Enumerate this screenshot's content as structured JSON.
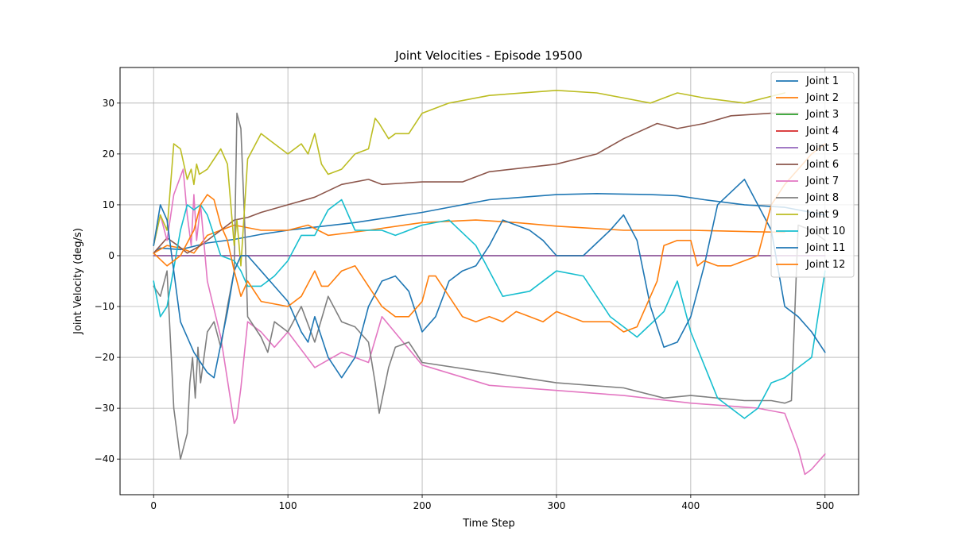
{
  "chart_data": {
    "type": "line",
    "title": "Joint Velocities - Episode 19500",
    "xlabel": "Time Step",
    "ylabel": "Joint Velocity (deg/s)",
    "xlim": [
      -25,
      525
    ],
    "ylim": [
      -47,
      37
    ],
    "xticks": [
      0,
      100,
      200,
      300,
      400,
      500
    ],
    "yticks": [
      -40,
      -30,
      -20,
      -10,
      0,
      10,
      20,
      30
    ],
    "xtick_labels": [
      "0",
      "100",
      "200",
      "300",
      "400",
      "500"
    ],
    "ytick_labels": [
      "−40",
      "−30",
      "−20",
      "−10",
      "0",
      "10",
      "20",
      "30"
    ],
    "grid": true,
    "legend_position": "top-right",
    "series": [
      {
        "name": "Joint 1",
        "color": "#1f77b4",
        "x": [
          0,
          5,
          20,
          40,
          60,
          80,
          100,
          150,
          200,
          250,
          300,
          330,
          370,
          390,
          410,
          440,
          470,
          490,
          500
        ],
        "y": [
          0.5,
          1.5,
          1.2,
          2.5,
          3.2,
          4.2,
          5,
          6.5,
          8.5,
          11,
          12,
          12.2,
          12,
          11.8,
          11,
          10,
          9.5,
          8.5,
          8
        ]
      },
      {
        "name": "Joint 2",
        "color": "#ff7f0e",
        "x": [
          0,
          10,
          20,
          30,
          40,
          60,
          80,
          100,
          115,
          130,
          160,
          200,
          240,
          270,
          300,
          350,
          400,
          450,
          470
        ],
        "y": [
          0.5,
          2,
          1.5,
          0.5,
          4,
          6,
          5,
          5,
          6,
          4,
          5,
          6.5,
          7,
          6.5,
          5.8,
          5,
          5,
          4.7,
          4.6
        ]
      },
      {
        "name": "Joint 3",
        "color": "#2ca02c",
        "x": [
          0,
          500
        ],
        "y": [
          0,
          0
        ]
      },
      {
        "name": "Joint 4",
        "color": "#d62728",
        "x": [
          0,
          500
        ],
        "y": [
          0,
          0
        ]
      },
      {
        "name": "Joint 5",
        "color": "#9467bd",
        "x": [
          0,
          500
        ],
        "y": [
          0,
          0
        ]
      },
      {
        "name": "Joint 6",
        "color": "#8c564b",
        "x": [
          0,
          10,
          18,
          25,
          35,
          50,
          60,
          70,
          80,
          100,
          120,
          140,
          160,
          170,
          200,
          230,
          250,
          300,
          330,
          350,
          375,
          390,
          410,
          430,
          460,
          480
        ],
        "y": [
          0.5,
          3.5,
          2,
          0.5,
          2,
          5,
          7,
          7.5,
          8.5,
          10,
          11.5,
          14,
          15,
          14,
          14.5,
          14.5,
          16.5,
          18,
          20,
          23,
          26,
          25,
          26,
          27.5,
          28,
          28
        ]
      },
      {
        "name": "Joint 7",
        "color": "#e377c2",
        "x": [
          0,
          5,
          10,
          15,
          22,
          25,
          28,
          30,
          32,
          35,
          40,
          50,
          60,
          62,
          65,
          70,
          80,
          90,
          100,
          120,
          140,
          160,
          170,
          200,
          250,
          300,
          350,
          400,
          450,
          470,
          480,
          485,
          490,
          500
        ],
        "y": [
          2,
          8,
          3,
          12,
          17,
          8,
          2,
          12,
          3,
          10,
          -5,
          -16,
          -33,
          -32,
          -26,
          -13,
          -15,
          -18,
          -15,
          -22,
          -19,
          -21,
          -12,
          -21.5,
          -25.5,
          -26.5,
          -27.5,
          -29,
          -30,
          -31,
          -38,
          -43,
          -42,
          -39
        ]
      },
      {
        "name": "Joint 8",
        "color": "#7f7f7f",
        "x": [
          0,
          5,
          10,
          15,
          20,
          25,
          27,
          29,
          31,
          33,
          35,
          40,
          45,
          50,
          55,
          60,
          62,
          65,
          68,
          70,
          80,
          85,
          90,
          100,
          110,
          120,
          130,
          140,
          150,
          160,
          165,
          168,
          175,
          180,
          190,
          200,
          250,
          300,
          350,
          380,
          400,
          420,
          440,
          460,
          470,
          475,
          480,
          490,
          500
        ],
        "y": [
          -6,
          -8,
          -3,
          -30,
          -40,
          -35,
          -25,
          -20,
          -28,
          -18,
          -25,
          -15,
          -13,
          -18,
          -10,
          -3,
          28,
          25,
          5,
          -12,
          -16,
          -19,
          -13,
          -15,
          -10,
          -17,
          -8,
          -13,
          -14,
          -17,
          -25,
          -31,
          -22,
          -18,
          -17,
          -21,
          -23,
          -25,
          -26,
          -28,
          -27.5,
          -28,
          -28.5,
          -28.5,
          -29,
          -28.5,
          6,
          5,
          3
        ]
      },
      {
        "name": "Joint 9",
        "color": "#bcbd22",
        "x": [
          0,
          5,
          10,
          15,
          20,
          25,
          28,
          30,
          32,
          34,
          40,
          50,
          55,
          60,
          62,
          65,
          70,
          80,
          85,
          90,
          100,
          110,
          115,
          120,
          125,
          130,
          140,
          150,
          160,
          165,
          168,
          175,
          180,
          190,
          200,
          220,
          250,
          300,
          330,
          350,
          370,
          390,
          410,
          440,
          470
        ],
        "y": [
          2,
          8,
          5,
          22,
          21,
          15,
          17,
          14,
          18,
          16,
          17,
          21,
          18,
          2,
          7,
          -2,
          19,
          24,
          23,
          22,
          20,
          22,
          20,
          24,
          18,
          16,
          17,
          20,
          21,
          27,
          26,
          23,
          24,
          24,
          28,
          30,
          31.5,
          32.5,
          32,
          31,
          30,
          32,
          31,
          30,
          32
        ]
      },
      {
        "name": "Joint 10",
        "color": "#17becf",
        "x": [
          0,
          5,
          10,
          20,
          25,
          30,
          35,
          40,
          50,
          60,
          65,
          70,
          80,
          90,
          100,
          110,
          120,
          130,
          140,
          150,
          160,
          170,
          180,
          190,
          200,
          220,
          240,
          260,
          280,
          300,
          320,
          340,
          360,
          380,
          390,
          400,
          420,
          440,
          450,
          460,
          470,
          480,
          490,
          500
        ],
        "y": [
          -5,
          -12,
          -10,
          5,
          10,
          9,
          10,
          8,
          0,
          -1,
          -3,
          -6,
          -6,
          -4,
          -1,
          4,
          4,
          9,
          11,
          5,
          5,
          5,
          4,
          5,
          6,
          7,
          2,
          -8,
          -7,
          -3,
          -4,
          -12,
          -16,
          -11,
          -5,
          -15,
          -28,
          -32,
          -30,
          -25,
          -24,
          -22,
          -20,
          -3
        ]
      },
      {
        "name": "Joint 11",
        "color": "#1f77b4",
        "x": [
          0,
          5,
          10,
          20,
          30,
          40,
          45,
          55,
          60,
          65,
          70,
          80,
          90,
          100,
          110,
          115,
          120,
          130,
          140,
          150,
          160,
          170,
          180,
          190,
          200,
          210,
          220,
          230,
          240,
          250,
          260,
          270,
          280,
          290,
          300,
          320,
          340,
          350,
          360,
          370,
          380,
          390,
          400,
          410,
          420,
          440,
          450,
          460,
          470,
          480,
          490,
          500
        ],
        "y": [
          2,
          10,
          7,
          -13,
          -19,
          -23,
          -24,
          -11,
          -3,
          0,
          0,
          -3,
          -6,
          -9,
          -15,
          -17,
          -12,
          -20,
          -24,
          -20,
          -10,
          -5,
          -4,
          -7,
          -15,
          -12,
          -5,
          -3,
          -2,
          2,
          7,
          6,
          5,
          3,
          0,
          0,
          5,
          8,
          3,
          -10,
          -18,
          -17,
          -12,
          -2,
          10,
          15,
          10,
          5,
          -10,
          -12,
          -15,
          -19
        ]
      },
      {
        "name": "Joint 12",
        "color": "#ff7f0e",
        "x": [
          0,
          10,
          20,
          30,
          35,
          40,
          45,
          50,
          55,
          60,
          65,
          70,
          80,
          100,
          110,
          120,
          125,
          130,
          140,
          150,
          160,
          170,
          180,
          190,
          200,
          205,
          210,
          220,
          230,
          240,
          250,
          260,
          270,
          280,
          290,
          300,
          320,
          340,
          350,
          360,
          370,
          375,
          380,
          390,
          400,
          405,
          410,
          420,
          430,
          440,
          450,
          460,
          470,
          480,
          490,
          500
        ],
        "y": [
          0.5,
          -2,
          0,
          5,
          10,
          12,
          11,
          6,
          3,
          -3,
          -8,
          -5,
          -9,
          -10,
          -8,
          -3,
          -6,
          -6,
          -3,
          -2,
          -6,
          -10,
          -12,
          -12,
          -9,
          -4,
          -4,
          -8,
          -12,
          -13,
          -12,
          -13,
          -11,
          -12,
          -13,
          -11,
          -13,
          -13,
          -15,
          -14,
          -8,
          -5,
          2,
          3,
          3,
          -2,
          -1,
          -2,
          -2,
          -1,
          0,
          10,
          14,
          17,
          20,
          22
        ]
      }
    ]
  }
}
